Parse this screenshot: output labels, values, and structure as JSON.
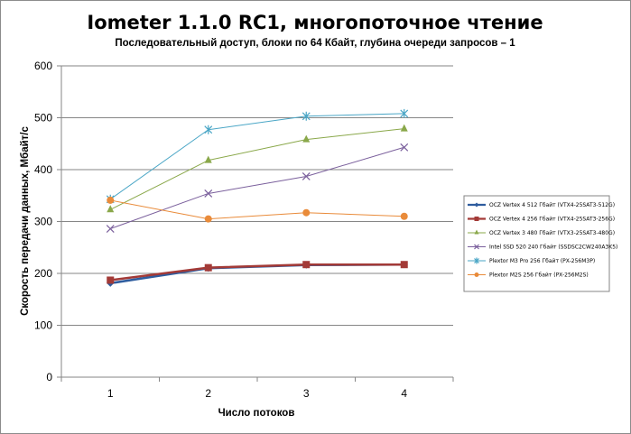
{
  "chart_data": {
    "type": "line",
    "title": "Iometer 1.1.0 RC1, многопоточное чтение",
    "subtitle": "Последовательный  доступ, блоки  по 64 Кбайт,  глубина очереди запросов – 1",
    "xlabel": "Число  потоков",
    "ylabel": "Скорость  передачи данных, Мбайт/с",
    "categories": [
      "1",
      "2",
      "3",
      "4"
    ],
    "ylim": [
      0,
      600
    ],
    "yticks": [
      0,
      100,
      200,
      300,
      400,
      500,
      600
    ],
    "grid": "horizontal",
    "legend_position": "right",
    "series": [
      {
        "name": "OCZ Vertex  4 512 Гбайт (VTX4-25SAT3-512G)",
        "values": [
          181,
          210,
          216,
          217
        ],
        "color": "#2e5c9e",
        "marker": "diamond",
        "width": 2.5
      },
      {
        "name": "OCZ Vertex  4 256 Гбайт (VTX4-25SAT3-256G)",
        "values": [
          187,
          211,
          217,
          217
        ],
        "color": "#a33a37",
        "marker": "square",
        "width": 2.5
      },
      {
        "name": "OCZ Vertex  3 480 Гбайт (VTX3-25SAT3-480G)",
        "values": [
          323,
          418,
          458,
          479
        ],
        "color": "#8aa84a",
        "marker": "triangle",
        "width": 1
      },
      {
        "name": "Intel SSD 520 240 Гбайт (SSDSC2CW240A3K5)",
        "values": [
          286,
          354,
          387,
          443
        ],
        "color": "#7a5f9c",
        "marker": "x",
        "width": 1
      },
      {
        "name": "Plextor M3 Pro 256 Гбайт (PX-256M3P)",
        "values": [
          343,
          477,
          503,
          508
        ],
        "color": "#4aa6c6",
        "marker": "star",
        "width": 1
      },
      {
        "name": "Plextor M2S 256 Гбайт (PX-256M2S)",
        "values": [
          341,
          305,
          317,
          310
        ],
        "color": "#e98b3a",
        "marker": "circle",
        "width": 1
      }
    ]
  }
}
